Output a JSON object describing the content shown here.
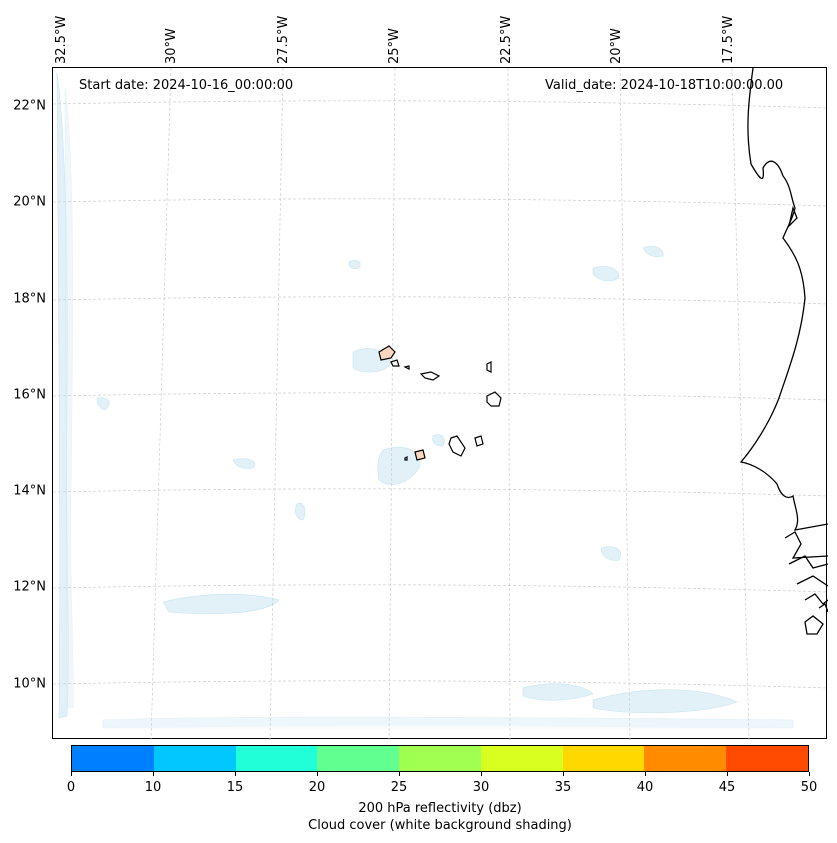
{
  "header": {
    "start_date": "Start date: 2024-10-16_00:00:00",
    "valid_date": "Valid_date: 2024-10-18T10:00:00.00"
  },
  "map": {
    "lat_labels": [
      "22°N",
      "20°N",
      "18°N",
      "16°N",
      "14°N",
      "12°N",
      "10°N"
    ],
    "lon_labels": [
      "32.5°W",
      "30°W",
      "27.5°W",
      "25°W",
      "22.5°W",
      "20°W",
      "17.5°W"
    ],
    "features": [
      "coastline-west-africa",
      "cape-verde-islands",
      "cloud-cover-shading"
    ]
  },
  "colorbar": {
    "ticks": [
      "0",
      "10",
      "15",
      "20",
      "25",
      "30",
      "35",
      "40",
      "45",
      "50"
    ],
    "colors": [
      "#0080ff",
      "#00c8ff",
      "#20ffd8",
      "#60ff90",
      "#a0ff50",
      "#d8ff20",
      "#ffd800",
      "#ff8c00",
      "#ff4b00"
    ],
    "label_line1": "200 hPa reflectivity (dbz)",
    "label_line2": "Cloud cover (white background shading)"
  }
}
